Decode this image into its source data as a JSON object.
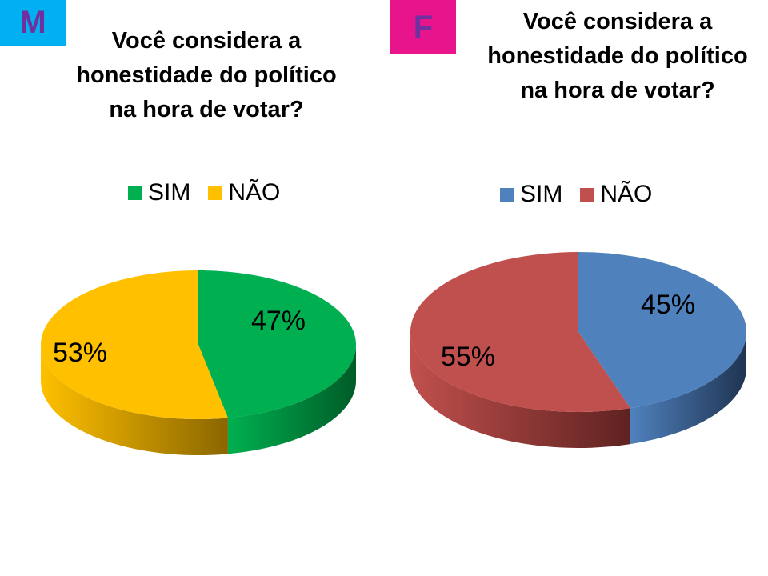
{
  "chart_data": [
    {
      "type": "pie",
      "badge": "M",
      "badge_color": "#00b0f0",
      "title": "Você considera a honestidade do político na hora de votar?",
      "title_lines": [
        "Você considera a",
        "honestidade do político",
        "na hora de votar?"
      ],
      "legend_position": "top",
      "categories": [
        "SIM",
        "NÃO"
      ],
      "values": [
        47,
        53
      ],
      "data_labels": [
        "47%",
        "53%"
      ],
      "colors": [
        "#00b050",
        "#ffc000"
      ],
      "side_colors": [
        "#005c28",
        "#8a6600"
      ]
    },
    {
      "type": "pie",
      "badge": "F",
      "badge_color": "#e8148c",
      "title": "Você considera a honestidade do político na hora de votar?",
      "title_lines": [
        "Você considera a",
        "honestidade do político",
        "na hora de votar?"
      ],
      "legend_position": "top",
      "categories": [
        "SIM",
        "NÃO"
      ],
      "values": [
        45,
        55
      ],
      "data_labels": [
        "45%",
        "55%"
      ],
      "colors": [
        "#4f81bd",
        "#c0504d"
      ],
      "side_colors": [
        "#1f3452",
        "#5e2220"
      ]
    }
  ]
}
